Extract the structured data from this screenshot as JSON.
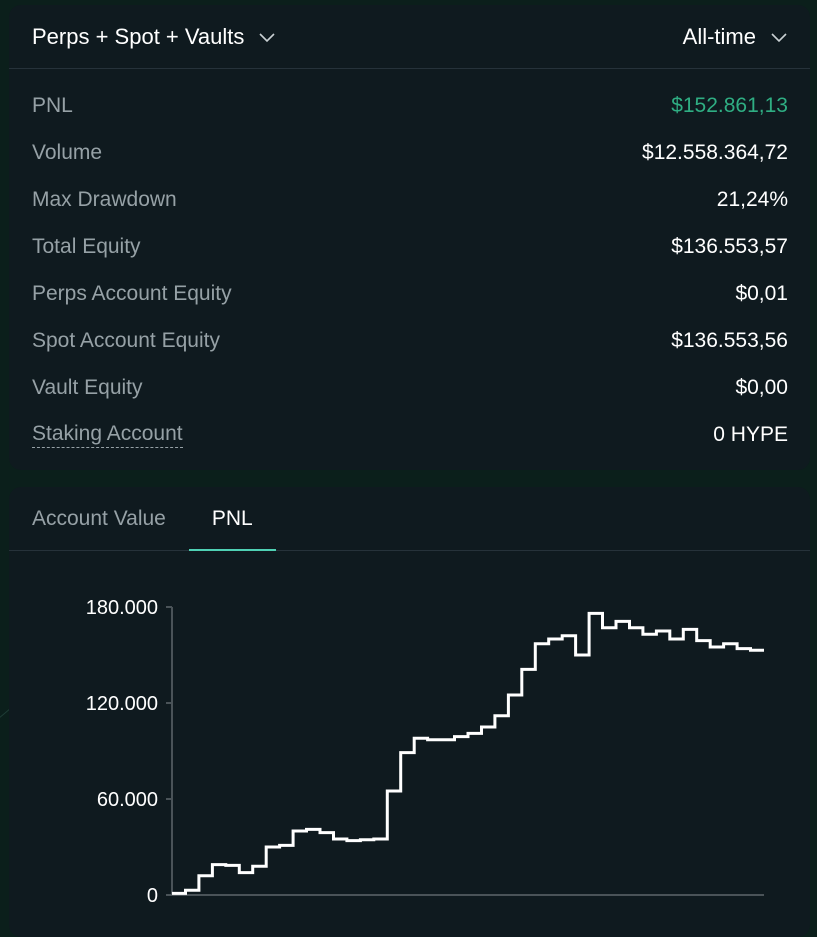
{
  "filters": {
    "scope": "Perps + Spot + Vaults",
    "period": "All-time"
  },
  "stats": [
    {
      "label": "PNL",
      "value": "$152.861,13",
      "highlight": true
    },
    {
      "label": "Volume",
      "value": "$12.558.364,72"
    },
    {
      "label": "Max Drawdown",
      "value": "21,24%"
    },
    {
      "label": "Total Equity",
      "value": "$136.553,57"
    },
    {
      "label": "Perps Account Equity",
      "value": "$0,01"
    },
    {
      "label": "Spot Account Equity",
      "value": "$136.553,56"
    },
    {
      "label": "Vault Equity",
      "value": "$0,00"
    },
    {
      "label": "Staking Account",
      "value": "0 HYPE"
    }
  ],
  "tabs": [
    {
      "label": "Account Value",
      "active": false
    },
    {
      "label": "PNL",
      "active": true
    }
  ],
  "colors": {
    "accent": "#4fd1b4",
    "positive": "#2fae83",
    "line": "#ffffff"
  },
  "chart_data": {
    "type": "line",
    "step": true,
    "ylim": [
      0,
      180000
    ],
    "yticks": [
      "180.000",
      "120.000",
      "60.000",
      "0"
    ],
    "ytick_values": [
      180000,
      120000,
      60000,
      0
    ],
    "values": [
      1000,
      3000,
      12000,
      19000,
      18500,
      14000,
      18000,
      30000,
      31000,
      40000,
      41000,
      39000,
      35000,
      34000,
      34500,
      35000,
      65000,
      89000,
      98000,
      97000,
      97000,
      99000,
      101000,
      105000,
      112000,
      125000,
      141000,
      157000,
      160000,
      162000,
      150000,
      176000,
      167000,
      171000,
      167000,
      163000,
      165000,
      160000,
      166000,
      159000,
      155000,
      157000,
      154000,
      153000
    ]
  }
}
